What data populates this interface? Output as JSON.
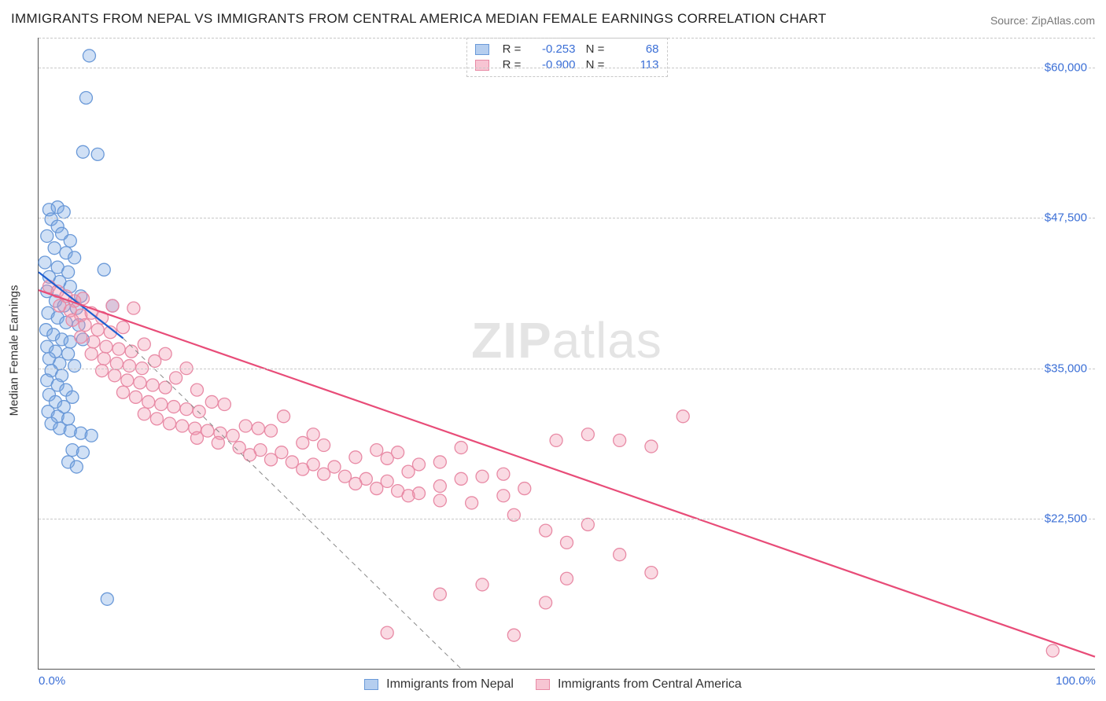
{
  "title": "IMMIGRANTS FROM NEPAL VS IMMIGRANTS FROM CENTRAL AMERICA MEDIAN FEMALE EARNINGS CORRELATION CHART",
  "source": "Source: ZipAtlas.com",
  "ylabel": "Median Female Earnings",
  "watermark_zip": "ZIP",
  "watermark_atlas": "atlas",
  "chart": {
    "type": "scatter",
    "xlim": [
      0,
      100
    ],
    "ylim": [
      10000,
      62500
    ],
    "yTicks": [
      22500,
      35000,
      47500,
      60000
    ],
    "yTickLabels": [
      "$22,500",
      "$35,000",
      "$47,500",
      "$60,000"
    ],
    "xTicks": [
      0,
      100
    ],
    "xTickLabels": [
      "0.0%",
      "100.0%"
    ],
    "background_color": "#ffffff",
    "grid_color": "#c8c8c8",
    "axis_color": "#555555",
    "text_color_axis": "#3b6fd6",
    "marker_radius": 8,
    "marker_stroke_width": 1.3,
    "series": [
      {
        "name": "Immigrants from Nepal",
        "fill": "rgba(120,165,225,0.35)",
        "stroke": "#6a99d8",
        "trend_color": "#1f5fd0",
        "trend_width": 2.2,
        "trend": {
          "x1": 0,
          "y1": 43000,
          "x2": 8,
          "y2": 37500
        },
        "trend_ext": {
          "x1": 8,
          "y1": 37500,
          "x2": 40,
          "y2": 10000
        },
        "R": "-0.253",
        "N": "68",
        "points": [
          [
            4.8,
            61000
          ],
          [
            4.5,
            57500
          ],
          [
            4.2,
            53000
          ],
          [
            5.6,
            52800
          ],
          [
            1.0,
            48200
          ],
          [
            1.8,
            48400
          ],
          [
            2.4,
            48000
          ],
          [
            1.2,
            47400
          ],
          [
            1.8,
            46800
          ],
          [
            2.2,
            46200
          ],
          [
            0.8,
            46000
          ],
          [
            3.0,
            45600
          ],
          [
            1.5,
            45000
          ],
          [
            2.6,
            44600
          ],
          [
            3.4,
            44200
          ],
          [
            0.6,
            43800
          ],
          [
            1.8,
            43400
          ],
          [
            2.8,
            43000
          ],
          [
            6.2,
            43200
          ],
          [
            1.0,
            42600
          ],
          [
            2.0,
            42200
          ],
          [
            3.0,
            41800
          ],
          [
            0.8,
            41400
          ],
          [
            4.0,
            41000
          ],
          [
            1.6,
            40600
          ],
          [
            2.4,
            40200
          ],
          [
            3.6,
            40000
          ],
          [
            7.0,
            40200
          ],
          [
            0.9,
            39600
          ],
          [
            1.8,
            39200
          ],
          [
            2.6,
            38800
          ],
          [
            3.8,
            38600
          ],
          [
            0.7,
            38200
          ],
          [
            1.4,
            37800
          ],
          [
            2.2,
            37400
          ],
          [
            3.0,
            37200
          ],
          [
            4.2,
            37400
          ],
          [
            0.8,
            36800
          ],
          [
            1.6,
            36400
          ],
          [
            2.8,
            36200
          ],
          [
            1.0,
            35800
          ],
          [
            2.0,
            35400
          ],
          [
            3.4,
            35200
          ],
          [
            1.2,
            34800
          ],
          [
            2.2,
            34400
          ],
          [
            0.8,
            34000
          ],
          [
            1.8,
            33600
          ],
          [
            2.6,
            33200
          ],
          [
            1.0,
            32800
          ],
          [
            3.2,
            32600
          ],
          [
            1.6,
            32200
          ],
          [
            2.4,
            31800
          ],
          [
            0.9,
            31400
          ],
          [
            1.8,
            31000
          ],
          [
            2.8,
            30800
          ],
          [
            1.2,
            30400
          ],
          [
            2.0,
            30000
          ],
          [
            3.0,
            29800
          ],
          [
            4.0,
            29600
          ],
          [
            5.0,
            29400
          ],
          [
            3.2,
            28200
          ],
          [
            4.2,
            28000
          ],
          [
            2.8,
            27200
          ],
          [
            3.6,
            26800
          ],
          [
            6.5,
            15800
          ]
        ]
      },
      {
        "name": "Immigrants from Central America",
        "fill": "rgba(240,150,175,0.35)",
        "stroke": "#e88aa5",
        "trend_color": "#e84c78",
        "trend_width": 2.2,
        "trend": {
          "x1": 0,
          "y1": 41500,
          "x2": 100,
          "y2": 11000
        },
        "R": "-0.900",
        "N": "113",
        "points": [
          [
            1.0,
            41800
          ],
          [
            1.8,
            41400
          ],
          [
            2.6,
            41000
          ],
          [
            3.4,
            40600
          ],
          [
            4.2,
            40800
          ],
          [
            2.0,
            40200
          ],
          [
            3.0,
            39800
          ],
          [
            4.0,
            39400
          ],
          [
            5.0,
            39600
          ],
          [
            6.0,
            39200
          ],
          [
            7.0,
            40200
          ],
          [
            3.2,
            39000
          ],
          [
            4.4,
            38600
          ],
          [
            5.6,
            38200
          ],
          [
            6.8,
            38000
          ],
          [
            8.0,
            38400
          ],
          [
            9.0,
            40000
          ],
          [
            4.0,
            37600
          ],
          [
            5.2,
            37200
          ],
          [
            6.4,
            36800
          ],
          [
            7.6,
            36600
          ],
          [
            8.8,
            36400
          ],
          [
            10.0,
            37000
          ],
          [
            5.0,
            36200
          ],
          [
            6.2,
            35800
          ],
          [
            7.4,
            35400
          ],
          [
            8.6,
            35200
          ],
          [
            9.8,
            35000
          ],
          [
            11.0,
            35600
          ],
          [
            12.0,
            36200
          ],
          [
            6.0,
            34800
          ],
          [
            7.2,
            34400
          ],
          [
            8.4,
            34000
          ],
          [
            9.6,
            33800
          ],
          [
            10.8,
            33600
          ],
          [
            12.0,
            33400
          ],
          [
            13.0,
            34200
          ],
          [
            14.0,
            35000
          ],
          [
            15.0,
            33200
          ],
          [
            8.0,
            33000
          ],
          [
            9.2,
            32600
          ],
          [
            10.4,
            32200
          ],
          [
            11.6,
            32000
          ],
          [
            12.8,
            31800
          ],
          [
            14.0,
            31600
          ],
          [
            15.2,
            31400
          ],
          [
            16.4,
            32200
          ],
          [
            17.6,
            32000
          ],
          [
            10.0,
            31200
          ],
          [
            11.2,
            30800
          ],
          [
            12.4,
            30400
          ],
          [
            13.6,
            30200
          ],
          [
            14.8,
            30000
          ],
          [
            16.0,
            29800
          ],
          [
            17.2,
            29600
          ],
          [
            18.4,
            29400
          ],
          [
            19.6,
            30200
          ],
          [
            20.8,
            30000
          ],
          [
            22.0,
            29800
          ],
          [
            23.2,
            31000
          ],
          [
            15.0,
            29200
          ],
          [
            17.0,
            28800
          ],
          [
            19.0,
            28400
          ],
          [
            21.0,
            28200
          ],
          [
            23.0,
            28000
          ],
          [
            25.0,
            28800
          ],
          [
            26.0,
            29500
          ],
          [
            27.0,
            28600
          ],
          [
            20.0,
            27800
          ],
          [
            22.0,
            27400
          ],
          [
            24.0,
            27200
          ],
          [
            26.0,
            27000
          ],
          [
            28.0,
            26800
          ],
          [
            30.0,
            27600
          ],
          [
            32.0,
            28200
          ],
          [
            33.0,
            27500
          ],
          [
            34.0,
            28000
          ],
          [
            25.0,
            26600
          ],
          [
            27.0,
            26200
          ],
          [
            29.0,
            26000
          ],
          [
            31.0,
            25800
          ],
          [
            33.0,
            25600
          ],
          [
            35.0,
            26400
          ],
          [
            36.0,
            27000
          ],
          [
            38.0,
            27200
          ],
          [
            40.0,
            28400
          ],
          [
            30.0,
            25400
          ],
          [
            32.0,
            25000
          ],
          [
            34.0,
            24800
          ],
          [
            36.0,
            24600
          ],
          [
            38.0,
            25200
          ],
          [
            40.0,
            25800
          ],
          [
            42.0,
            26000
          ],
          [
            44.0,
            26200
          ],
          [
            35.0,
            24400
          ],
          [
            38.0,
            24000
          ],
          [
            41.0,
            23800
          ],
          [
            44.0,
            24400
          ],
          [
            46.0,
            25000
          ],
          [
            49.0,
            29000
          ],
          [
            52.0,
            29500
          ],
          [
            55.0,
            29000
          ],
          [
            58.0,
            28500
          ],
          [
            61.0,
            31000
          ],
          [
            45.0,
            22800
          ],
          [
            48.0,
            21500
          ],
          [
            50.0,
            20500
          ],
          [
            52.0,
            22000
          ],
          [
            55.0,
            19500
          ],
          [
            58.0,
            18000
          ],
          [
            50.0,
            17500
          ],
          [
            42.0,
            17000
          ],
          [
            38.0,
            16200
          ],
          [
            48.0,
            15500
          ],
          [
            33.0,
            13000
          ],
          [
            45.0,
            12800
          ],
          [
            96.0,
            11500
          ]
        ]
      }
    ]
  },
  "legend_bottom": [
    {
      "swatch": "blue",
      "label": "Immigrants from Nepal"
    },
    {
      "swatch": "pink",
      "label": "Immigrants from Central America"
    }
  ]
}
